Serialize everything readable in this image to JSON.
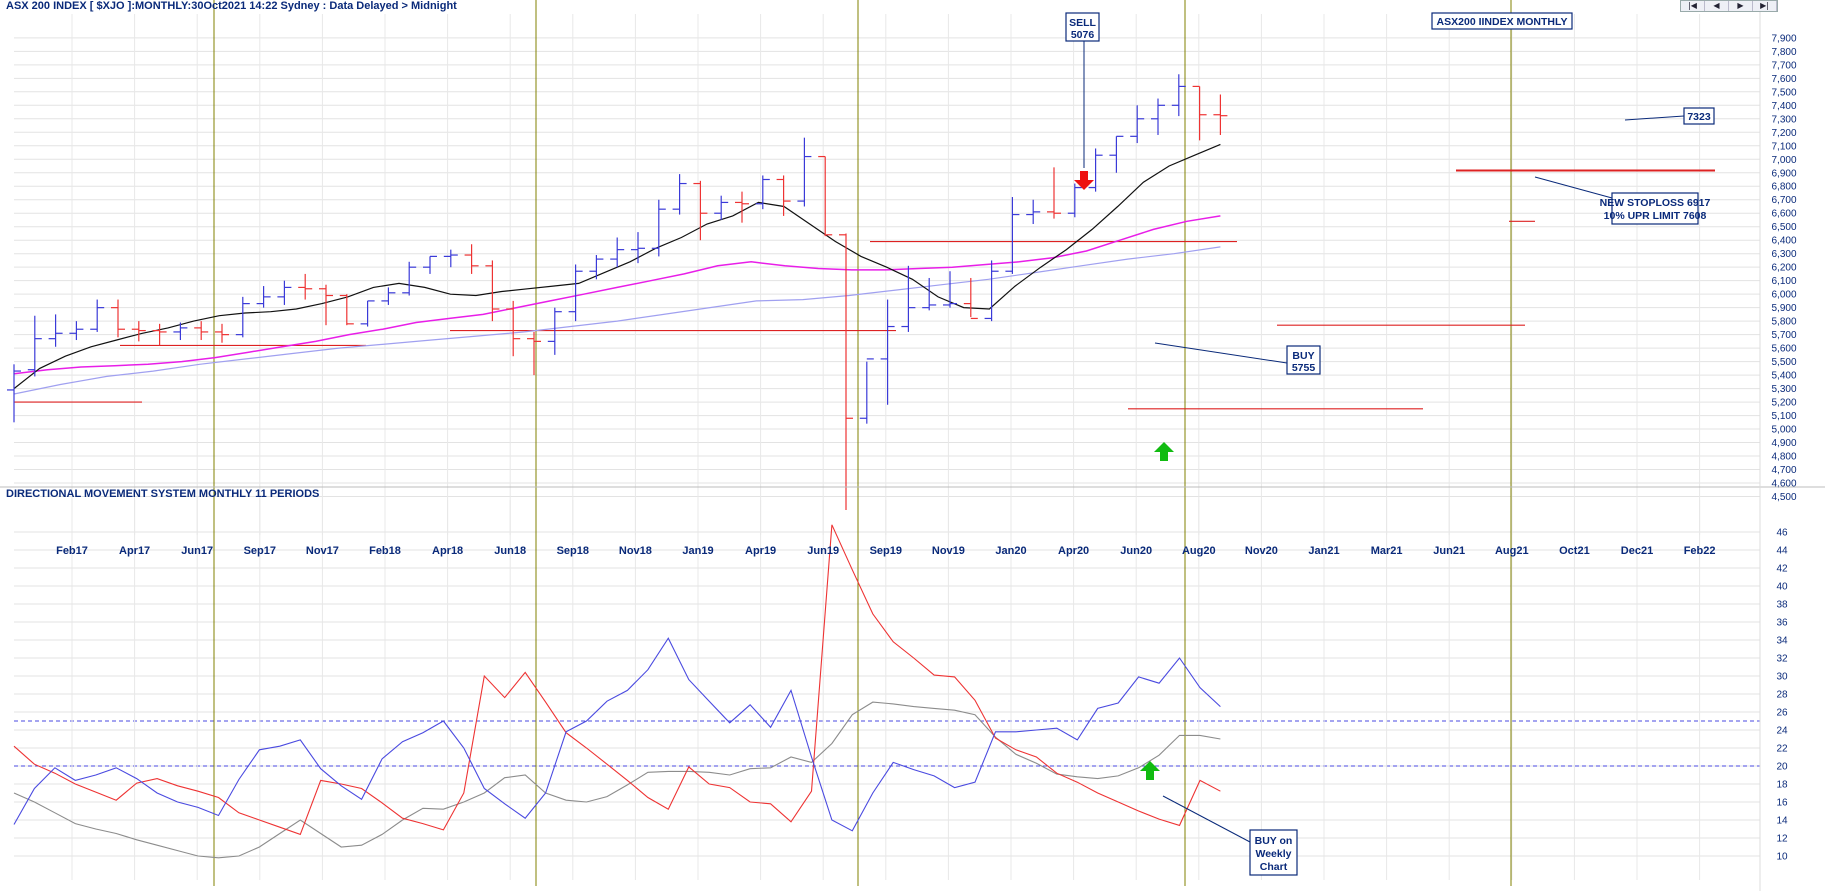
{
  "header": {
    "main_title": "ASX 200 INDEX [ $XJO ]:MONTHLY:30Oct2021 14:22 Sydney : Data Delayed > Midnight",
    "indicator_title": "DIRECTIONAL MOVEMENT SYSTEM MONTHLY 11 PERIODS"
  },
  "nav": {
    "first": "|◀",
    "prev": "◀",
    "next": "▶",
    "last": "▶|"
  },
  "colors": {
    "up": "#3a3ad8",
    "down": "#ee3333",
    "ma_short": "#111111",
    "ma_mid": "#e81ee8",
    "ma_long": "#a0a0f0",
    "grid_v": "#808000",
    "support": "#dd2222",
    "di_plus": "#4a4ae0",
    "di_minus": "#ee3333",
    "adx": "#8c8c8c",
    "annotation": "#0a2a7a",
    "arrow_sell": "#ee1111",
    "arrow_buy": "#11bb11"
  },
  "chart_data": [
    {
      "type": "ohlc",
      "title": "ASX 200 INDEX [ $XJO ]:MONTHLY",
      "x_labels": [
        "Feb17",
        "Apr17",
        "Jun17",
        "Sep17",
        "Nov17",
        "Feb18",
        "Apr18",
        "Jun18",
        "Sep18",
        "Nov18",
        "Jan19",
        "Apr19",
        "Jun19",
        "Sep19",
        "Nov19",
        "Jan20",
        "Apr20",
        "Jun20",
        "Aug20",
        "Nov20",
        "Jan21",
        "Mar21",
        "Jun21",
        "Aug21",
        "Oct21",
        "Dec21",
        "Feb22"
      ],
      "y_ticks": [
        4500,
        4600,
        4700,
        4800,
        4900,
        5000,
        5100,
        5200,
        5300,
        5400,
        5500,
        5600,
        5700,
        5800,
        5900,
        6000,
        6100,
        6200,
        6300,
        6400,
        6500,
        6600,
        6700,
        6800,
        6900,
        7000,
        7100,
        7200,
        7300,
        7400,
        7500,
        7600,
        7700,
        7800,
        7900
      ],
      "y_tick_labels": [
        "4,500",
        "4,600",
        "4,700",
        "4,800",
        "4,900",
        "5,000",
        "5,100",
        "5,200",
        "5,300",
        "5,400",
        "5,500",
        "5,600",
        "5,700",
        "5,800",
        "5,900",
        "6,000",
        "6,100",
        "6,200",
        "6,300",
        "6,400",
        "6,500",
        "6,600",
        "6,700",
        "6,800",
        "6,900",
        "7,000",
        "7,100",
        "7,200",
        "7,300",
        "7,400",
        "7,500",
        "7,600",
        "7,700",
        "7,800",
        "7,900"
      ],
      "ylim": [
        4400,
        8000
      ],
      "bars": [
        [
          5290,
          5480,
          5050,
          5430
        ],
        [
          5440,
          5840,
          5390,
          5670
        ],
        [
          5670,
          5850,
          5610,
          5710
        ],
        [
          5710,
          5800,
          5660,
          5740
        ],
        [
          5740,
          5960,
          5720,
          5900
        ],
        [
          5900,
          5960,
          5680,
          5740
        ],
        [
          5740,
          5800,
          5650,
          5730
        ],
        [
          5730,
          5780,
          5620,
          5720
        ],
        [
          5720,
          5790,
          5660,
          5750
        ],
        [
          5750,
          5800,
          5660,
          5720
        ],
        [
          5720,
          5780,
          5640,
          5700
        ],
        [
          5700,
          5980,
          5680,
          5930
        ],
        [
          5930,
          6060,
          5900,
          5980
        ],
        [
          5980,
          6100,
          5920,
          6050
        ],
        [
          6050,
          6150,
          5960,
          6040
        ],
        [
          6040,
          6070,
          5770,
          5990
        ],
        [
          5990,
          6000,
          5770,
          5780
        ],
        [
          5780,
          5950,
          5760,
          5950
        ],
        [
          5950,
          6050,
          5920,
          6010
        ],
        [
          6010,
          6240,
          5990,
          6200
        ],
        [
          6200,
          6280,
          6150,
          6280
        ],
        [
          6280,
          6330,
          6200,
          6290
        ],
        [
          6290,
          6370,
          6150,
          6210
        ],
        [
          6210,
          6250,
          5800,
          5890
        ],
        [
          5890,
          5950,
          5540,
          5670
        ],
        [
          5670,
          5720,
          5400,
          5650
        ],
        [
          5650,
          5900,
          5550,
          5870
        ],
        [
          5870,
          6220,
          5800,
          6170
        ],
        [
          6170,
          6290,
          6110,
          6260
        ],
        [
          6260,
          6420,
          6200,
          6330
        ],
        [
          6330,
          6460,
          6230,
          6340
        ],
        [
          6340,
          6700,
          6280,
          6630
        ],
        [
          6630,
          6890,
          6590,
          6820
        ],
        [
          6820,
          6840,
          6400,
          6600
        ],
        [
          6600,
          6730,
          6550,
          6680
        ],
        [
          6680,
          6760,
          6530,
          6670
        ],
        [
          6670,
          6880,
          6630,
          6850
        ],
        [
          6850,
          6880,
          6580,
          6690
        ],
        [
          6690,
          7160,
          6650,
          7020
        ],
        [
          7020,
          7020,
          6430,
          6440
        ],
        [
          6440,
          6450,
          4400,
          5080
        ],
        [
          5080,
          5500,
          5040,
          5520
        ],
        [
          5520,
          5960,
          5180,
          5760
        ],
        [
          5760,
          6210,
          5720,
          5900
        ],
        [
          5900,
          6120,
          5880,
          5920
        ],
        [
          5920,
          6170,
          5900,
          5930
        ],
        [
          5930,
          6120,
          5830,
          5820
        ],
        [
          5820,
          6250,
          5800,
          6170
        ],
        [
          6170,
          6720,
          6150,
          6590
        ],
        [
          6590,
          6700,
          6520,
          6610
        ],
        [
          6610,
          6940,
          6560,
          6600
        ],
        [
          6600,
          6820,
          6570,
          6790
        ],
        [
          6790,
          7080,
          6760,
          7030
        ],
        [
          7030,
          7170,
          6900,
          7170
        ],
        [
          7170,
          7400,
          7120,
          7300
        ],
        [
          7300,
          7450,
          7180,
          7400
        ],
        [
          7400,
          7630,
          7320,
          7540
        ],
        [
          7540,
          7540,
          7140,
          7330
        ],
        [
          7330,
          7480,
          7180,
          7323
        ]
      ],
      "ma_short": [
        5300,
        5450,
        5540,
        5610,
        5660,
        5710,
        5750,
        5800,
        5840,
        5860,
        5870,
        5890,
        5930,
        5980,
        6050,
        6080,
        6050,
        6000,
        5990,
        6020,
        6040,
        6060,
        6080,
        6160,
        6240,
        6340,
        6420,
        6520,
        6580,
        6680,
        6650,
        6520,
        6390,
        6280,
        6200,
        6110,
        5980,
        5900,
        5890,
        6060,
        6200,
        6330,
        6480,
        6650,
        6830,
        6950,
        7030,
        7110
      ],
      "ma_mid": [
        5410,
        5440,
        5460,
        5470,
        5480,
        5500,
        5530,
        5570,
        5610,
        5650,
        5700,
        5740,
        5790,
        5820,
        5850,
        5900,
        5950,
        6000,
        6050,
        6100,
        6150,
        6210,
        6240,
        6210,
        6190,
        6180,
        6180,
        6190,
        6200,
        6220,
        6240,
        6270,
        6320,
        6400,
        6480,
        6540,
        6580
      ],
      "ma_long": [
        5260,
        5330,
        5390,
        5430,
        5480,
        5520,
        5560,
        5600,
        5630,
        5660,
        5690,
        5720,
        5760,
        5800,
        5850,
        5900,
        5950,
        5960,
        5990,
        6030,
        6070,
        6110,
        6160,
        6210,
        6260,
        6300,
        6350
      ],
      "support_lines": [
        {
          "price": 5200
        },
        {
          "price": 5620
        },
        {
          "price": 5730
        },
        {
          "price": 6390
        },
        {
          "price": 5150
        },
        {
          "price": 5770
        },
        {
          "price": 6540
        },
        {
          "price": 6917
        }
      ]
    },
    {
      "type": "line",
      "title": "DIRECTIONAL MOVEMENT SYSTEM MONTHLY 11 PERIODS",
      "y_ticks": [
        10,
        12,
        14,
        16,
        18,
        20,
        22,
        24,
        26,
        28,
        30,
        32,
        34,
        36,
        38,
        40,
        42,
        44,
        46
      ],
      "ylim": [
        8,
        48
      ],
      "ref_lines": [
        20,
        25
      ],
      "di_plus": [
        13.5,
        17.5,
        19.8,
        18.4,
        19.0,
        19.8,
        18.6,
        17.0,
        16.0,
        15.4,
        14.5,
        18.5,
        21.8,
        22.2,
        22.9,
        19.7,
        17.8,
        16.3,
        20.8,
        22.7,
        23.7,
        25.0,
        22.0,
        17.5,
        15.8,
        14.2,
        17.0,
        23.8,
        25.0,
        27.2,
        28.4,
        30.7,
        34.2,
        29.6,
        27.2,
        24.8,
        26.8,
        24.3,
        28.4,
        21.0,
        14.0,
        12.8,
        17.0,
        20.4,
        19.6,
        18.9,
        17.6,
        18.2,
        23.8,
        23.8,
        24.0,
        24.2,
        22.9,
        26.4,
        27.0,
        29.9,
        29.2,
        32.0,
        28.7,
        26.6
      ],
      "di_minus": [
        22.2,
        20.2,
        19.2,
        18.0,
        17.1,
        16.2,
        18.1,
        18.6,
        17.8,
        17.2,
        16.5,
        14.8,
        14.0,
        13.2,
        12.4,
        18.4,
        18.0,
        17.5,
        15.9,
        14.2,
        13.6,
        12.9,
        17.0,
        30.0,
        27.6,
        30.4,
        27.1,
        23.7,
        22.0,
        20.2,
        18.4,
        16.5,
        15.2,
        19.9,
        18.0,
        17.6,
        16.0,
        15.8,
        13.8,
        17.2,
        46.8,
        41.8,
        36.9,
        33.8,
        32.0,
        30.1,
        29.9,
        27.3,
        23.1,
        21.8,
        21.0,
        19.2,
        18.2,
        17.0,
        16.0,
        15.0,
        14.1,
        13.4,
        18.4,
        17.2
      ],
      "adx": [
        17.0,
        16.0,
        14.8,
        13.6,
        13.0,
        12.5,
        11.8,
        11.2,
        10.6,
        10.0,
        9.8,
        10.0,
        11.0,
        12.5,
        14.0,
        12.5,
        11.0,
        11.2,
        12.4,
        14.0,
        15.3,
        15.2,
        16.0,
        17.0,
        18.7,
        19.0,
        17.0,
        16.2,
        16.0,
        16.6,
        17.9,
        19.3,
        19.4,
        19.4,
        19.3,
        19.0,
        19.7,
        19.8,
        21.0,
        20.4,
        22.5,
        25.7,
        27.1,
        26.9,
        26.6,
        26.4,
        26.2,
        25.7,
        23.2,
        21.3,
        20.3,
        19.1,
        18.8,
        18.6,
        18.9,
        19.8,
        21.2,
        23.4,
        23.4,
        23.0
      ]
    }
  ],
  "annotations": {
    "sell": {
      "line1": "SELL",
      "line2": "5076"
    },
    "title_box": {
      "text": "ASX200 IINDEX MONTHLY"
    },
    "buy_main": {
      "line1": "BUY",
      "line2": "5755"
    },
    "last_price": {
      "text": "7323"
    },
    "stoploss": {
      "line1": "NEW STOPLOSS 6917",
      "line2": "10% UPR LIMIT 7608"
    },
    "buy_weekly": {
      "line1": "BUY on",
      "line2": "Weekly",
      "line3": "Chart"
    }
  }
}
